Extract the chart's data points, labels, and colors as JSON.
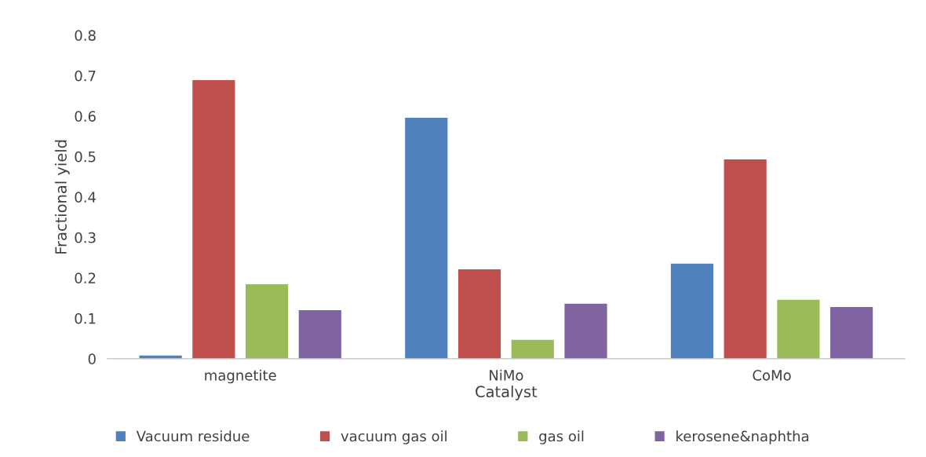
{
  "chart_data": {
    "type": "bar",
    "xlabel": "Catalyst",
    "ylabel": "Fractional yield",
    "categories": [
      "magnetite",
      "NiMo",
      "CoMo"
    ],
    "series": [
      {
        "name": "Vacuum residue",
        "color": "#4f81bd",
        "values": [
          0.008,
          0.596,
          0.235
        ]
      },
      {
        "name": "vacuum gas oil",
        "color": "#c0504d",
        "values": [
          0.689,
          0.221,
          0.493
        ]
      },
      {
        "name": "gas oil",
        "color": "#9bbb59",
        "values": [
          0.184,
          0.047,
          0.146
        ]
      },
      {
        "name": "kerosene&naphtha",
        "color": "#8064a2",
        "values": [
          0.12,
          0.136,
          0.128
        ]
      }
    ],
    "ylim": [
      0,
      0.8
    ],
    "yticks": [
      0,
      0.1,
      0.2,
      0.3,
      0.4,
      0.5,
      0.6,
      0.7,
      0.8
    ],
    "grid": false,
    "legend": "bottom"
  }
}
